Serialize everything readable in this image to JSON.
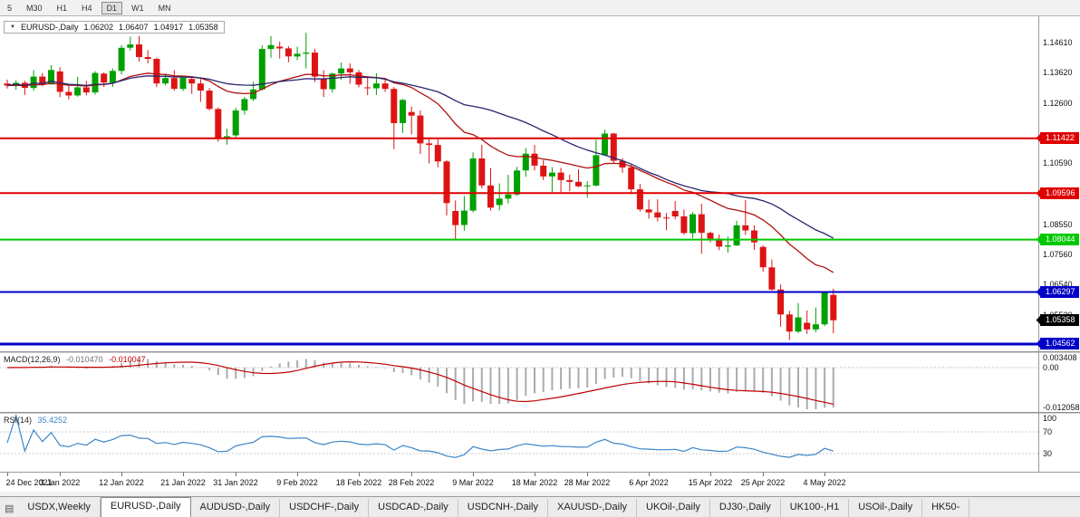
{
  "toolbar": {
    "timeframes": [
      {
        "label": "5",
        "active": false
      },
      {
        "label": "M30",
        "active": false
      },
      {
        "label": "H1",
        "active": false
      },
      {
        "label": "H4",
        "active": false
      },
      {
        "label": "D1",
        "active": true
      },
      {
        "label": "W1",
        "active": false
      },
      {
        "label": "MN",
        "active": false
      }
    ]
  },
  "colors": {
    "up": "#00A000",
    "down": "#DE1414"
  },
  "chart_data": {
    "type": "candlestick",
    "title": "EURUSD-,Daily",
    "current_bar": {
      "open": "1.06202",
      "high": "1.06407",
      "low": "1.04917",
      "close": "1.05358"
    },
    "y_axis": {
      "min": 1.0432,
      "max": 1.1549,
      "ticks": [
        "1.14610",
        "1.13620",
        "1.12600",
        "1.10590",
        "1.08550",
        "1.07560",
        "1.06540",
        "1.05520"
      ]
    },
    "levels": [
      {
        "price": 1.11422,
        "color": "#E00000",
        "width": 2
      },
      {
        "price": 1.09596,
        "color": "#E00000",
        "width": 2
      },
      {
        "price": 1.08044,
        "color": "#00C800",
        "width": 2
      },
      {
        "price": 1.06297,
        "color": "#0000C8",
        "width": 2
      },
      {
        "price": 1.04562,
        "color": "#0000C8",
        "width": 3
      }
    ],
    "current_price": {
      "price": 1.05358,
      "color": "#000000"
    },
    "moving_averages": [
      {
        "kind": "ema",
        "period": 20,
        "color": "#B01010"
      },
      {
        "kind": "sma",
        "period": 30,
        "color": "#26266E"
      }
    ],
    "candles": [
      [
        1.1325,
        1.1338,
        1.1308,
        1.1318
      ],
      [
        1.1318,
        1.1336,
        1.1304,
        1.1327
      ],
      [
        1.1327,
        1.1334,
        1.1287,
        1.131
      ],
      [
        1.131,
        1.1369,
        1.1301,
        1.1348
      ],
      [
        1.1348,
        1.136,
        1.1316,
        1.1322
      ],
      [
        1.1322,
        1.1386,
        1.1321,
        1.137
      ],
      [
        1.1365,
        1.1379,
        1.1279,
        1.1297
      ],
      [
        1.1297,
        1.1323,
        1.1272,
        1.1285
      ],
      [
        1.1285,
        1.1347,
        1.1281,
        1.1312
      ],
      [
        1.1312,
        1.1334,
        1.1285,
        1.1295
      ],
      [
        1.1295,
        1.1366,
        1.1288,
        1.136
      ],
      [
        1.1358,
        1.1362,
        1.1313,
        1.1328
      ],
      [
        1.1328,
        1.1375,
        1.1314,
        1.1367
      ],
      [
        1.1367,
        1.1453,
        1.1355,
        1.1444
      ],
      [
        1.1444,
        1.1481,
        1.1435,
        1.1455
      ],
      [
        1.1455,
        1.1483,
        1.1398,
        1.1413
      ],
      [
        1.1413,
        1.1436,
        1.1392,
        1.1407
      ],
      [
        1.1407,
        1.1411,
        1.1313,
        1.1325
      ],
      [
        1.1325,
        1.1358,
        1.1318,
        1.1343
      ],
      [
        1.1343,
        1.1369,
        1.1301,
        1.1307
      ],
      [
        1.1307,
        1.1348,
        1.13,
        1.1344
      ],
      [
        1.134,
        1.1349,
        1.129,
        1.1325
      ],
      [
        1.1325,
        1.134,
        1.1264,
        1.1301
      ],
      [
        1.1301,
        1.131,
        1.1235,
        1.124
      ],
      [
        1.124,
        1.1245,
        1.1131,
        1.1144
      ],
      [
        1.1144,
        1.1174,
        1.1121,
        1.1149
      ],
      [
        1.1152,
        1.1244,
        1.1141,
        1.1235
      ],
      [
        1.1235,
        1.128,
        1.1221,
        1.1273
      ],
      [
        1.1273,
        1.133,
        1.1266,
        1.1305
      ],
      [
        1.1305,
        1.1452,
        1.1302,
        1.144
      ],
      [
        1.144,
        1.1483,
        1.1411,
        1.1453
      ],
      [
        1.1448,
        1.1465,
        1.1408,
        1.1442
      ],
      [
        1.1442,
        1.1449,
        1.1396,
        1.1415
      ],
      [
        1.1415,
        1.1448,
        1.1403,
        1.1424
      ],
      [
        1.1424,
        1.1494,
        1.1375,
        1.1428
      ],
      [
        1.1428,
        1.144,
        1.133,
        1.1348
      ],
      [
        1.134,
        1.1369,
        1.128,
        1.1306
      ],
      [
        1.1306,
        1.1361,
        1.1295,
        1.1358
      ],
      [
        1.1358,
        1.1395,
        1.1337,
        1.1375
      ],
      [
        1.1375,
        1.1392,
        1.1324,
        1.1362
      ],
      [
        1.1362,
        1.137,
        1.1312,
        1.1321
      ],
      [
        1.1312,
        1.1349,
        1.1286,
        1.1309
      ],
      [
        1.1309,
        1.1359,
        1.1287,
        1.1325
      ],
      [
        1.1325,
        1.1343,
        1.1297,
        1.1307
      ],
      [
        1.1307,
        1.1313,
        1.1106,
        1.1193
      ],
      [
        1.1193,
        1.1274,
        1.116,
        1.127
      ],
      [
        1.123,
        1.1248,
        1.1155,
        1.1218
      ],
      [
        1.1218,
        1.1235,
        1.109,
        1.1125
      ],
      [
        1.1125,
        1.1145,
        1.1058,
        1.112
      ],
      [
        1.112,
        1.1139,
        1.1045,
        1.1065
      ],
      [
        1.1065,
        1.107,
        1.0885,
        1.0926
      ],
      [
        1.09,
        1.0935,
        1.0806,
        1.0853
      ],
      [
        1.0853,
        1.095,
        1.0834,
        1.0901
      ],
      [
        1.0901,
        1.1095,
        1.0895,
        1.1075
      ],
      [
        1.1075,
        1.1121,
        1.0975,
        1.0985
      ],
      [
        1.0985,
        1.1043,
        1.0901,
        1.0911
      ],
      [
        1.092,
        1.0992,
        1.0902,
        1.0941
      ],
      [
        1.0941,
        1.102,
        1.0925,
        1.0955
      ],
      [
        1.0955,
        1.1047,
        1.095,
        1.1035
      ],
      [
        1.1035,
        1.1109,
        1.1014,
        1.1091
      ],
      [
        1.1091,
        1.112,
        1.1035,
        1.1051
      ],
      [
        1.1051,
        1.1069,
        1.1003,
        1.1015
      ],
      [
        1.1015,
        1.1046,
        1.0963,
        1.1028
      ],
      [
        1.1028,
        1.1044,
        1.0963,
        1.1003
      ],
      [
        1.1003,
        1.1021,
        1.0966,
        1.0997
      ],
      [
        1.0997,
        1.1039,
        1.0979,
        1.0982
      ],
      [
        1.0982,
        1.1,
        1.0944,
        1.0985
      ],
      [
        1.0985,
        1.1137,
        1.0982,
        1.1086
      ],
      [
        1.1086,
        1.1171,
        1.1083,
        1.1158
      ],
      [
        1.1158,
        1.116,
        1.106,
        1.1067
      ],
      [
        1.1067,
        1.1076,
        1.1027,
        1.1045
      ],
      [
        1.1045,
        1.1055,
        1.096,
        1.0972
      ],
      [
        1.0972,
        1.099,
        1.0898,
        1.0905
      ],
      [
        1.0905,
        1.0938,
        1.0874,
        1.0895
      ],
      [
        1.0895,
        1.0939,
        1.0865,
        1.0878
      ],
      [
        1.0878,
        1.0893,
        1.0836,
        1.0876
      ],
      [
        1.09,
        1.0933,
        1.0872,
        1.0882
      ],
      [
        1.0882,
        1.0905,
        1.0821,
        1.0826
      ],
      [
        1.0826,
        1.0896,
        1.0809,
        1.0889
      ],
      [
        1.0889,
        1.0924,
        1.0757,
        1.0827
      ],
      [
        1.0827,
        1.0831,
        1.0795,
        1.0808
      ],
      [
        1.0808,
        1.0821,
        1.0769,
        1.0781
      ],
      [
        1.0781,
        1.0815,
        1.0761,
        1.0785
      ],
      [
        1.0785,
        1.0867,
        1.0783,
        1.0852
      ],
      [
        1.0852,
        1.0936,
        1.082,
        1.0835
      ],
      [
        1.0835,
        1.0852,
        1.077,
        1.0795
      ],
      [
        1.078,
        1.0785,
        1.0697,
        1.0712
      ],
      [
        1.0712,
        1.0738,
        1.0635,
        1.0638
      ],
      [
        1.0638,
        1.0655,
        1.0514,
        1.0555
      ],
      [
        1.0555,
        1.0567,
        1.047,
        1.0498
      ],
      [
        1.0498,
        1.0593,
        1.0492,
        1.0545
      ],
      [
        1.0527,
        1.0568,
        1.049,
        1.0505
      ],
      [
        1.0505,
        1.0578,
        1.0495,
        1.0522
      ],
      [
        1.0522,
        1.0632,
        1.0516,
        1.063
      ],
      [
        1.06202,
        1.06407,
        1.04917,
        1.05358
      ]
    ],
    "x_labels": [
      {
        "text": "24 Dec 2021",
        "bar": 0
      },
      {
        "text": "3 Jan 2022",
        "bar": 6
      },
      {
        "text": "12 Jan 2022",
        "bar": 13
      },
      {
        "text": "21 Jan 2022",
        "bar": 20
      },
      {
        "text": "31 Jan 2022",
        "bar": 26
      },
      {
        "text": "9 Feb 2022",
        "bar": 33
      },
      {
        "text": "18 Feb 2022",
        "bar": 40
      },
      {
        "text": "28 Feb 2022",
        "bar": 46
      },
      {
        "text": "9 Mar 2022",
        "bar": 53
      },
      {
        "text": "18 Mar 2022",
        "bar": 60
      },
      {
        "text": "28 Mar 2022",
        "bar": 66
      },
      {
        "text": "6 Apr 2022",
        "bar": 73
      },
      {
        "text": "15 Apr 2022",
        "bar": 80
      },
      {
        "text": "25 Apr 2022",
        "bar": 86
      },
      {
        "text": "4 May 2022",
        "bar": 93
      }
    ],
    "indicators": {
      "macd": {
        "name": "MACD(12,26,9)",
        "fast": 12,
        "slow": 26,
        "signal": 9,
        "value_main": "-0.010470",
        "value_signal": "-0.010047",
        "scale_max": 0.003408,
        "scale_min": -0.012058,
        "axis_labels": [
          "0.003408",
          "0.00",
          "-0.012058"
        ],
        "histogram_color": "#ABABAB",
        "signal_color": "#C00000"
      },
      "rsi": {
        "name": "RSI(14)",
        "period": 14,
        "value": "35.4252",
        "axis_labels": [
          "100",
          "70",
          "30"
        ],
        "levels": [
          70,
          30
        ],
        "color": "#3A86C8"
      }
    }
  },
  "tab_bar": {
    "tabs": [
      {
        "label": "USDX,Weekly",
        "active": false
      },
      {
        "label": "EURUSD-,Daily",
        "active": true
      },
      {
        "label": "AUDUSD-,Daily",
        "active": false
      },
      {
        "label": "USDCHF-,Daily",
        "active": false
      },
      {
        "label": "USDCAD-,Daily",
        "active": false
      },
      {
        "label": "USDCNH-,Daily",
        "active": false
      },
      {
        "label": "XAUUSD-,Daily",
        "active": false
      },
      {
        "label": "UKOil-,Daily",
        "active": false
      },
      {
        "label": "DJ30-,Daily",
        "active": false
      },
      {
        "label": "UK100-,H1",
        "active": false
      },
      {
        "label": "USOil-,Daily",
        "active": false
      },
      {
        "label": "HK50-",
        "active": false
      }
    ]
  }
}
